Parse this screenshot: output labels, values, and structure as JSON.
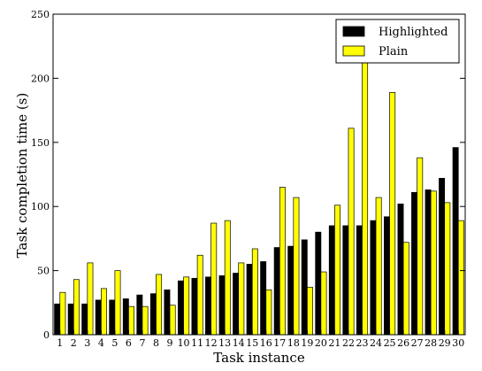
{
  "chart_data": {
    "type": "bar",
    "title": "",
    "xlabel": "Task instance",
    "ylabel": "Task completion time (s)",
    "ylim": [
      0,
      250
    ],
    "yticks": [
      0,
      50,
      100,
      150,
      200,
      250
    ],
    "grid": false,
    "legend_position": "top-right",
    "categories": [
      "1",
      "2",
      "3",
      "4",
      "5",
      "6",
      "7",
      "8",
      "9",
      "10",
      "11",
      "12",
      "13",
      "14",
      "15",
      "16",
      "17",
      "18",
      "19",
      "20",
      "21",
      "22",
      "23",
      "24",
      "25",
      "26",
      "27",
      "28",
      "29",
      "30"
    ],
    "series": [
      {
        "name": "Highlighted",
        "color": "#000000",
        "values": [
          24,
          24,
          24,
          27,
          27,
          28,
          31,
          32,
          35,
          42,
          44,
          45,
          46,
          48,
          55,
          57,
          68,
          69,
          74,
          80,
          85,
          85,
          85,
          89,
          92,
          102,
          111,
          113,
          122,
          146
        ]
      },
      {
        "name": "Plain",
        "color": "#ffff00",
        "values": [
          33,
          43,
          56,
          36,
          50,
          22,
          22,
          47,
          23,
          45,
          62,
          87,
          89,
          56,
          67,
          35,
          115,
          107,
          37,
          49,
          101,
          161,
          212,
          107,
          189,
          72,
          138,
          112,
          103,
          89
        ]
      }
    ]
  }
}
